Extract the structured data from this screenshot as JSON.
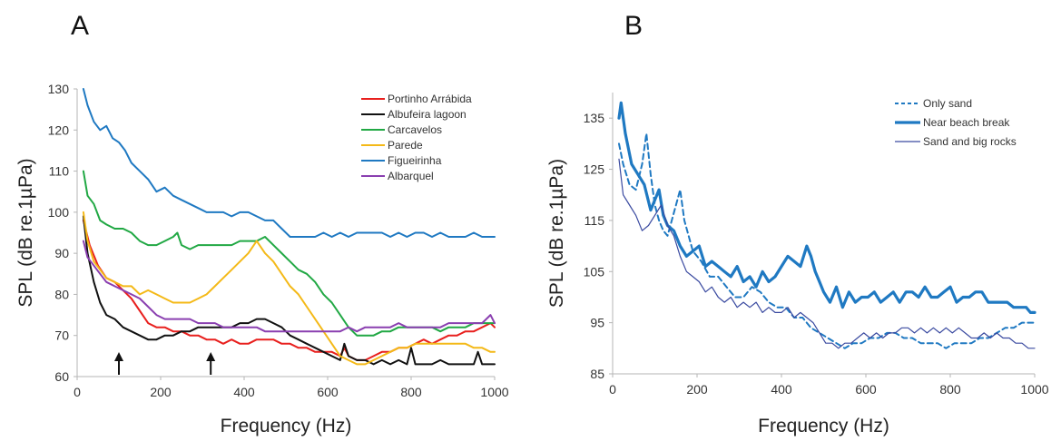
{
  "panel_labels": [
    "A",
    "B"
  ],
  "chart_data": [
    {
      "type": "line",
      "panel": "A",
      "xlabel": "Frequency (Hz)",
      "ylabel": "SPL (dB re.1µPa)",
      "xlim": [
        0,
        1000
      ],
      "ylim": [
        60,
        130
      ],
      "xticks": [
        0,
        200,
        400,
        600,
        800,
        1000
      ],
      "yticks": [
        60,
        70,
        80,
        90,
        100,
        110,
        120,
        130
      ],
      "grid": false,
      "legend_position": "top-right",
      "arrows_at_x": [
        100,
        320
      ],
      "series": [
        {
          "name": "Portinho Arrábida",
          "color": "#e8201e",
          "width": 2,
          "x": [
            15,
            30,
            50,
            70,
            90,
            110,
            130,
            150,
            170,
            190,
            210,
            230,
            250,
            270,
            290,
            310,
            330,
            350,
            370,
            390,
            410,
            430,
            450,
            470,
            490,
            510,
            530,
            550,
            570,
            590,
            610,
            630,
            640,
            650,
            670,
            690,
            710,
            730,
            750,
            770,
            790,
            810,
            830,
            850,
            870,
            890,
            910,
            930,
            950,
            970,
            990,
            1000
          ],
          "y": [
            98,
            92,
            87,
            84,
            83,
            81,
            79,
            76,
            73,
            72,
            72,
            71,
            71,
            70,
            70,
            69,
            69,
            68,
            69,
            68,
            68,
            69,
            69,
            69,
            68,
            68,
            67,
            67,
            66,
            66,
            66,
            65,
            67,
            65,
            64,
            64,
            65,
            66,
            66,
            67,
            67,
            68,
            69,
            68,
            69,
            70,
            70,
            71,
            71,
            72,
            73,
            72
          ]
        },
        {
          "name": "Albufeira lagoon",
          "color": "#111111",
          "width": 2,
          "x": [
            15,
            25,
            40,
            55,
            70,
            90,
            110,
            130,
            150,
            170,
            190,
            210,
            230,
            250,
            270,
            290,
            310,
            330,
            350,
            370,
            390,
            410,
            430,
            450,
            470,
            490,
            510,
            530,
            550,
            570,
            590,
            610,
            630,
            640,
            650,
            670,
            690,
            710,
            730,
            750,
            770,
            790,
            800,
            810,
            830,
            850,
            870,
            890,
            910,
            930,
            950,
            960,
            970,
            990,
            1000
          ],
          "y": [
            99,
            90,
            83,
            78,
            75,
            74,
            72,
            71,
            70,
            69,
            69,
            70,
            70,
            71,
            71,
            72,
            72,
            72,
            72,
            72,
            73,
            73,
            74,
            74,
            73,
            72,
            70,
            69,
            68,
            67,
            66,
            65,
            64,
            68,
            65,
            64,
            64,
            63,
            64,
            63,
            64,
            63,
            67,
            63,
            63,
            63,
            64,
            63,
            63,
            63,
            63,
            66,
            63,
            63,
            63
          ]
        },
        {
          "name": "Carcavelos",
          "color": "#21a844",
          "width": 2,
          "x": [
            15,
            25,
            40,
            55,
            70,
            90,
            110,
            130,
            150,
            170,
            190,
            210,
            230,
            240,
            250,
            270,
            290,
            310,
            330,
            350,
            370,
            390,
            410,
            430,
            450,
            470,
            490,
            510,
            530,
            550,
            570,
            590,
            610,
            630,
            650,
            670,
            690,
            710,
            730,
            750,
            770,
            790,
            810,
            830,
            850,
            870,
            890,
            910,
            930,
            950,
            970,
            990,
            1000
          ],
          "y": [
            110,
            104,
            102,
            98,
            97,
            96,
            96,
            95,
            93,
            92,
            92,
            93,
            94,
            95,
            92,
            91,
            92,
            92,
            92,
            92,
            92,
            93,
            93,
            93,
            94,
            92,
            90,
            88,
            86,
            85,
            83,
            80,
            78,
            75,
            72,
            70,
            70,
            70,
            71,
            71,
            72,
            72,
            72,
            72,
            72,
            71,
            72,
            72,
            72,
            73,
            73,
            73,
            73
          ]
        },
        {
          "name": "Parede",
          "color": "#f4b918",
          "width": 2,
          "x": [
            15,
            25,
            40,
            55,
            70,
            90,
            110,
            130,
            150,
            170,
            190,
            210,
            230,
            250,
            270,
            290,
            310,
            330,
            350,
            370,
            390,
            410,
            430,
            450,
            470,
            490,
            510,
            530,
            550,
            570,
            590,
            610,
            630,
            650,
            670,
            690,
            710,
            730,
            750,
            770,
            790,
            810,
            830,
            850,
            870,
            890,
            910,
            930,
            950,
            970,
            990,
            1000
          ],
          "y": [
            100,
            93,
            88,
            86,
            84,
            83,
            82,
            82,
            80,
            81,
            80,
            79,
            78,
            78,
            78,
            79,
            80,
            82,
            84,
            86,
            88,
            90,
            93,
            90,
            88,
            85,
            82,
            80,
            77,
            74,
            71,
            68,
            65,
            64,
            63,
            63,
            64,
            65,
            66,
            67,
            67,
            68,
            68,
            68,
            68,
            68,
            68,
            68,
            67,
            67,
            66,
            66
          ]
        },
        {
          "name": "Figueirinha",
          "color": "#1f79c2",
          "width": 2,
          "x": [
            15,
            25,
            40,
            55,
            70,
            85,
            100,
            115,
            130,
            150,
            170,
            190,
            210,
            230,
            250,
            270,
            290,
            310,
            330,
            350,
            370,
            390,
            410,
            430,
            450,
            470,
            490,
            510,
            530,
            550,
            570,
            590,
            610,
            630,
            650,
            670,
            690,
            710,
            730,
            750,
            770,
            790,
            810,
            830,
            850,
            870,
            890,
            910,
            930,
            950,
            970,
            990,
            1000
          ],
          "y": [
            130,
            126,
            122,
            120,
            121,
            118,
            117,
            115,
            112,
            110,
            108,
            105,
            106,
            104,
            103,
            102,
            101,
            100,
            100,
            100,
            99,
            100,
            100,
            99,
            98,
            98,
            96,
            94,
            94,
            94,
            94,
            95,
            94,
            95,
            94,
            95,
            95,
            95,
            95,
            94,
            95,
            94,
            95,
            95,
            94,
            95,
            94,
            94,
            94,
            95,
            94,
            94,
            94
          ]
        },
        {
          "name": "Albarquel",
          "color": "#8a3fb0",
          "width": 2,
          "x": [
            15,
            25,
            40,
            55,
            70,
            90,
            110,
            130,
            150,
            170,
            190,
            210,
            230,
            250,
            270,
            290,
            310,
            330,
            350,
            370,
            390,
            410,
            430,
            450,
            470,
            490,
            510,
            530,
            550,
            570,
            590,
            610,
            630,
            650,
            670,
            690,
            710,
            730,
            750,
            770,
            790,
            810,
            830,
            850,
            870,
            890,
            910,
            930,
            950,
            970,
            980,
            990,
            1000
          ],
          "y": [
            93,
            89,
            87,
            85,
            83,
            82,
            81,
            80,
            79,
            77,
            75,
            74,
            74,
            74,
            74,
            73,
            73,
            73,
            72,
            72,
            72,
            72,
            72,
            71,
            71,
            71,
            71,
            71,
            71,
            71,
            71,
            71,
            71,
            72,
            71,
            72,
            72,
            72,
            72,
            73,
            72,
            72,
            72,
            72,
            72,
            73,
            73,
            73,
            73,
            73,
            74,
            75,
            73
          ]
        }
      ]
    },
    {
      "type": "line",
      "panel": "B",
      "xlabel": "Frequency (Hz)",
      "ylabel": "SPL (dB re.1µPa)",
      "xlim": [
        0,
        1000
      ],
      "ylim": [
        85,
        140
      ],
      "xticks": [
        0,
        200,
        400,
        600,
        800,
        1000
      ],
      "yticks": [
        85,
        95,
        105,
        115,
        125,
        135
      ],
      "grid": false,
      "legend_position": "top-right",
      "series": [
        {
          "name": "Only sand",
          "color": "#1f79c2",
          "width": 2,
          "dash": "6 4",
          "x": [
            15,
            25,
            40,
            55,
            70,
            80,
            90,
            100,
            110,
            120,
            130,
            150,
            160,
            170,
            190,
            210,
            230,
            250,
            270,
            290,
            310,
            330,
            350,
            370,
            390,
            410,
            430,
            450,
            470,
            490,
            510,
            530,
            550,
            570,
            590,
            610,
            630,
            650,
            670,
            690,
            710,
            730,
            750,
            770,
            790,
            810,
            830,
            850,
            870,
            890,
            910,
            930,
            950,
            970,
            990,
            1000
          ],
          "y": [
            130,
            126,
            122,
            121,
            126,
            132,
            124,
            118,
            115,
            113,
            112,
            118,
            121,
            115,
            109,
            107,
            104,
            104,
            102,
            100,
            100,
            102,
            101,
            99,
            98,
            98,
            96,
            96,
            94,
            93,
            92,
            91,
            90,
            91,
            91,
            92,
            92,
            93,
            93,
            92,
            92,
            91,
            91,
            91,
            90,
            91,
            91,
            91,
            92,
            92,
            93,
            94,
            94,
            95,
            95,
            95
          ]
        },
        {
          "name": "Near beach break",
          "color": "#1f79c2",
          "width": 3.2,
          "x": [
            15,
            20,
            30,
            45,
            60,
            75,
            90,
            100,
            110,
            120,
            130,
            145,
            160,
            175,
            190,
            205,
            220,
            235,
            250,
            265,
            280,
            295,
            310,
            325,
            340,
            355,
            370,
            385,
            400,
            415,
            430,
            445,
            460,
            470,
            480,
            490,
            500,
            515,
            530,
            545,
            560,
            575,
            590,
            605,
            620,
            635,
            650,
            665,
            680,
            695,
            710,
            725,
            740,
            755,
            770,
            785,
            800,
            815,
            830,
            845,
            860,
            875,
            890,
            905,
            920,
            935,
            950,
            965,
            980,
            990,
            1000
          ],
          "y": [
            135,
            138,
            132,
            126,
            124,
            122,
            117,
            119,
            121,
            116,
            114,
            113,
            110,
            108,
            109,
            110,
            106,
            107,
            106,
            105,
            104,
            106,
            103,
            104,
            102,
            105,
            103,
            104,
            106,
            108,
            107,
            106,
            110,
            108,
            105,
            103,
            101,
            99,
            102,
            98,
            101,
            99,
            100,
            100,
            101,
            99,
            100,
            101,
            99,
            101,
            101,
            100,
            102,
            100,
            100,
            101,
            102,
            99,
            100,
            100,
            101,
            101,
            99,
            99,
            99,
            99,
            98,
            98,
            98,
            97,
            97
          ]
        },
        {
          "name": "Sand and big rocks",
          "color": "#3a4aa0",
          "width": 1.2,
          "x": [
            15,
            25,
            40,
            55,
            70,
            85,
            100,
            115,
            130,
            145,
            160,
            175,
            190,
            205,
            220,
            235,
            250,
            265,
            280,
            295,
            310,
            325,
            340,
            355,
            370,
            385,
            400,
            415,
            430,
            445,
            460,
            475,
            490,
            505,
            520,
            535,
            550,
            565,
            580,
            595,
            610,
            625,
            640,
            655,
            670,
            685,
            700,
            715,
            730,
            745,
            760,
            775,
            790,
            805,
            820,
            835,
            850,
            865,
            880,
            895,
            910,
            925,
            940,
            955,
            970,
            985,
            1000
          ],
          "y": [
            127,
            120,
            118,
            116,
            113,
            114,
            116,
            118,
            114,
            112,
            108,
            105,
            104,
            103,
            101,
            102,
            100,
            99,
            100,
            98,
            99,
            98,
            99,
            97,
            98,
            97,
            97,
            98,
            96,
            97,
            96,
            95,
            93,
            91,
            91,
            90,
            91,
            91,
            92,
            93,
            92,
            93,
            92,
            93,
            93,
            94,
            94,
            93,
            94,
            93,
            94,
            93,
            94,
            93,
            94,
            93,
            92,
            92,
            93,
            92,
            93,
            92,
            92,
            91,
            91,
            90,
            90
          ]
        }
      ]
    }
  ]
}
